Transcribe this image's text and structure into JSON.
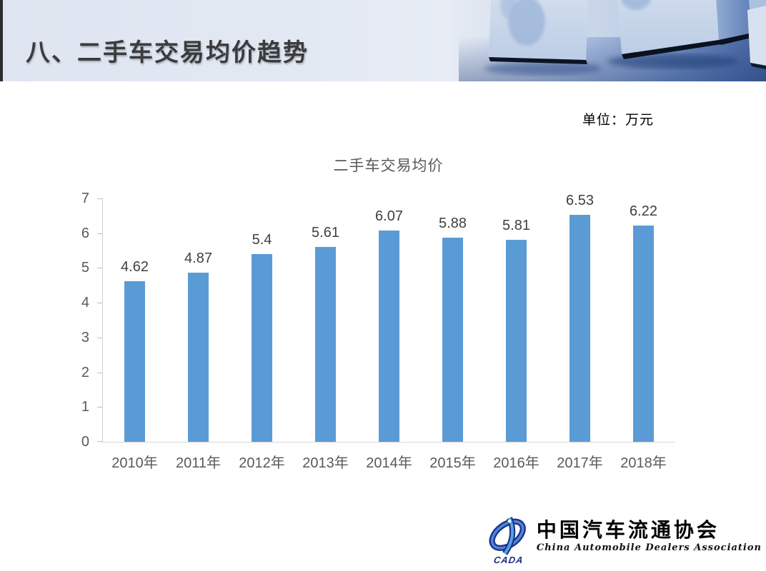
{
  "header": {
    "title": "八、二手车交易均价趋势"
  },
  "unit_label": "单位：万元",
  "chart_data": {
    "type": "bar",
    "title": "二手车交易均价",
    "categories": [
      "2010年",
      "2011年",
      "2012年",
      "2013年",
      "2014年",
      "2015年",
      "2016年",
      "2017年",
      "2018年"
    ],
    "values": [
      4.62,
      4.87,
      5.4,
      5.61,
      6.07,
      5.88,
      5.81,
      6.53,
      6.22
    ],
    "xlabel": "",
    "ylabel": "",
    "unit": "万元",
    "ylim": [
      0,
      7
    ],
    "yticks": [
      0,
      1,
      2,
      3,
      4,
      5,
      6,
      7
    ],
    "grid": false,
    "legend": "none",
    "data_labels": true,
    "bar_color": "#5B9BD5"
  },
  "logo": {
    "acronym": "CADA",
    "cn_name": "中国汽车流通协会",
    "en_name": "China Automobile Dealers Association"
  },
  "colors": {
    "bar": "#5B9BD5",
    "axis_text": "#595959",
    "value_text": "#404040",
    "chart_title_text": "#595959",
    "header_title_text": "#3b3b3b",
    "logo_navy": "#1d2f86",
    "logo_blue": "#4a86d8",
    "axis_line": "#d6d6d6"
  }
}
